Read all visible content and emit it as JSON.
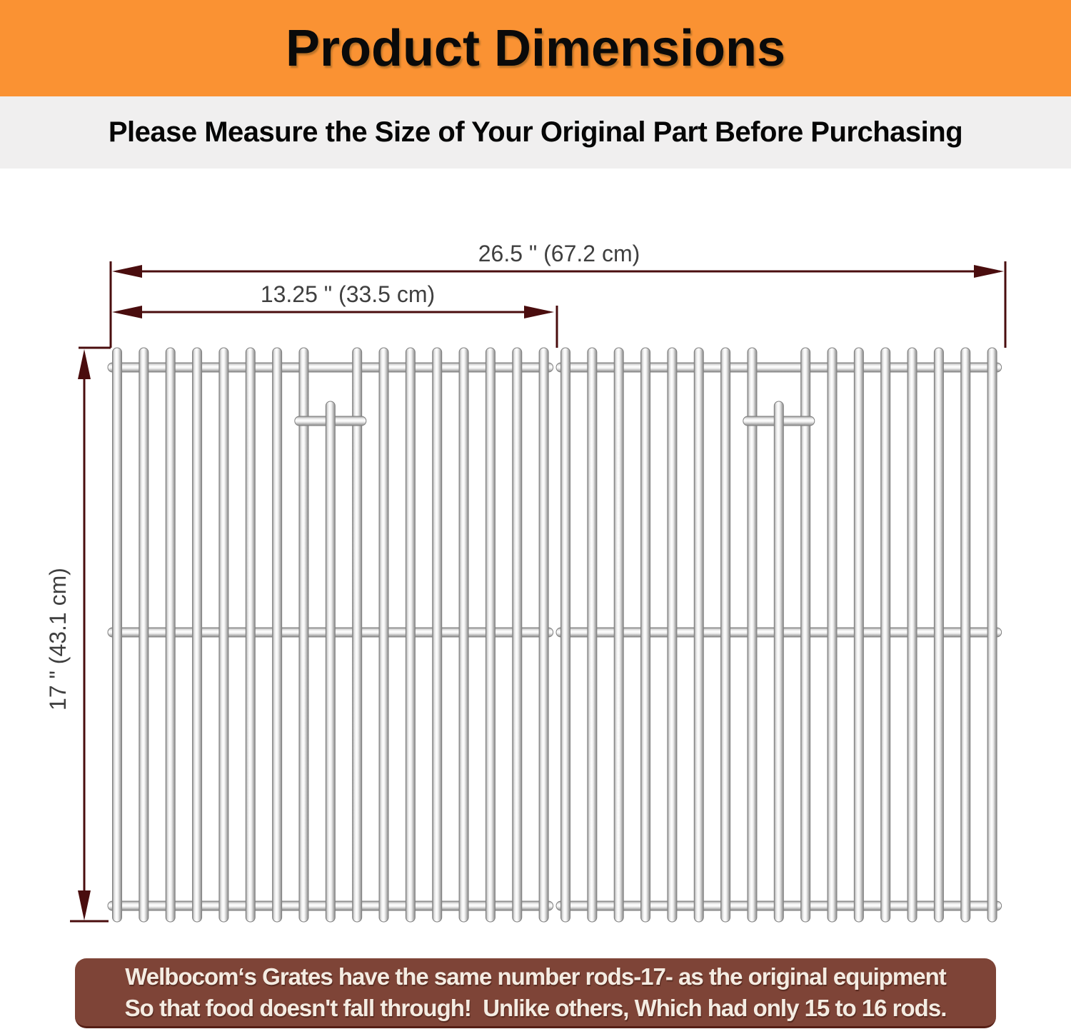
{
  "header": {
    "title": "Product Dimensions",
    "bg_color": "#fa9233"
  },
  "subtitle": {
    "text": "Please Measure the Size of Your Original Part Before Purchasing",
    "bg_color": "#f0efef"
  },
  "diagram": {
    "total_width_label": "26.5 \" (67.2 cm)",
    "half_width_label": "13.25 \" (33.5 cm)",
    "height_label": "17 \" (43.1 cm)",
    "dimension_line_color": "#4a0d0e",
    "label_color": "#3f3f3f",
    "grate_count": 2,
    "rods_per_grate": 17
  },
  "note": {
    "line1": "Welbocom‘s Grates have the same number rods-17- as the original equipment",
    "line2": "So that food doesn't fall through!  Unlike others, Which had only 15 to 16 rods.",
    "bg_color": "#7e4437",
    "text_color": "#f4ece2"
  }
}
